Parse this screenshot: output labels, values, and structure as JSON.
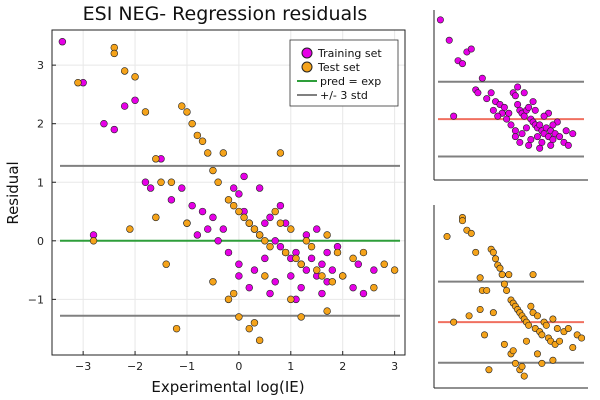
{
  "colors": {
    "training": "#e600e6",
    "test": "#f5a31a",
    "pred_line": "#2e9e3a",
    "std_line": "#808080",
    "inset_mean_line": "#f07060"
  },
  "chart_data": [
    {
      "type": "scatter",
      "title": "ESI NEG- Regression residuals",
      "xlabel": "Experimental log(IE)",
      "ylabel": "Residual",
      "xlim": [
        -3.6,
        3.2
      ],
      "ylim": [
        -1.95,
        3.6
      ],
      "xticks": [
        -3,
        -2,
        -1,
        0,
        1,
        2,
        3
      ],
      "yticks": [
        -1,
        0,
        1,
        2,
        3
      ],
      "grid": true,
      "legend_position": "top-right",
      "legend": [
        "Training set",
        "Test set",
        "pred = exp",
        "+/- 3 std"
      ],
      "reference_lines": {
        "pred_eq_exp": 0.0,
        "plus_3std": 1.28,
        "minus_3std": -1.28
      },
      "series": [
        {
          "name": "Training set",
          "x": [
            -3.4,
            -3.0,
            -2.8,
            -2.6,
            -2.4,
            -2.2,
            -2.0,
            -1.8,
            -1.7,
            -1.5,
            -1.3,
            -1.1,
            -0.9,
            -0.7,
            -0.5,
            -0.3,
            -0.1,
            0.0,
            0.1,
            0.2,
            0.3,
            0.4,
            0.5,
            0.6,
            0.7,
            0.8,
            0.9,
            1.0,
            1.1,
            1.2,
            1.3,
            1.4,
            1.5,
            1.6,
            1.7,
            1.8,
            2.0,
            2.2,
            2.4,
            2.6,
            -0.2,
            0.0,
            0.3,
            0.5,
            0.7,
            1.0,
            1.2,
            0.1,
            0.4,
            0.8,
            1.5,
            1.9,
            -0.4,
            -0.6,
            0.2,
            0.6,
            1.1,
            1.6,
            2.3,
            -1.0,
            -0.8,
            0.0,
            0.9,
            1.3,
            1.7
          ],
          "y": [
            3.4,
            2.7,
            0.1,
            2.0,
            1.9,
            2.3,
            2.4,
            1.0,
            0.9,
            1.4,
            0.7,
            0.9,
            0.6,
            0.5,
            0.4,
            0.2,
            0.9,
            0.8,
            0.5,
            0.3,
            0.2,
            0.1,
            0.3,
            0.4,
            0.0,
            -0.1,
            -0.2,
            -0.3,
            -0.2,
            -0.4,
            -0.5,
            -0.3,
            -0.6,
            -0.4,
            -0.7,
            -0.5,
            -0.6,
            -0.8,
            -0.9,
            -0.5,
            -0.2,
            -0.4,
            -0.5,
            -0.3,
            -0.7,
            -0.6,
            -0.8,
            1.1,
            0.9,
            0.6,
            0.2,
            -0.1,
            0.0,
            0.2,
            -0.8,
            -0.9,
            -1.0,
            -0.9,
            -0.4,
            0.3,
            0.1,
            -0.6,
            0.3,
            0.1,
            -0.2
          ]
        },
        {
          "name": "Test set",
          "x": [
            -3.1,
            -2.4,
            -2.4,
            -2.2,
            -2.0,
            -1.8,
            -1.6,
            -1.5,
            -1.3,
            -1.1,
            -1.0,
            -0.9,
            -0.8,
            -0.7,
            -0.6,
            -0.5,
            -0.4,
            -0.3,
            -0.2,
            -0.1,
            0.0,
            0.1,
            0.2,
            0.3,
            0.4,
            0.5,
            0.6,
            0.7,
            0.8,
            0.9,
            1.0,
            1.1,
            1.2,
            1.3,
            1.4,
            1.5,
            1.6,
            1.7,
            1.8,
            1.9,
            2.0,
            2.2,
            2.4,
            2.6,
            2.8,
            3.0,
            -0.2,
            0.0,
            0.2,
            0.4,
            -0.5,
            -1.4,
            -1.2,
            -2.8,
            -2.1,
            -1.0,
            0.3,
            0.8,
            1.2,
            1.7,
            -0.1,
            0.5,
            1.0,
            -1.6
          ],
          "y": [
            2.7,
            3.3,
            3.2,
            2.9,
            2.8,
            2.2,
            1.4,
            1.0,
            1.0,
            2.3,
            2.2,
            2.0,
            1.8,
            1.7,
            1.5,
            1.2,
            1.0,
            1.5,
            0.7,
            0.6,
            0.5,
            0.4,
            0.3,
            0.2,
            0.1,
            0.0,
            -0.1,
            0.5,
            0.3,
            -0.2,
            0.2,
            -0.3,
            -0.4,
            0.0,
            -0.1,
            -0.5,
            -0.6,
            0.1,
            -0.7,
            -0.2,
            -0.6,
            -0.3,
            -0.2,
            -0.8,
            -0.4,
            -0.5,
            -1.0,
            -1.3,
            -1.5,
            -1.7,
            -0.7,
            -0.4,
            -1.5,
            0.0,
            0.2,
            0.3,
            -1.4,
            1.5,
            -1.3,
            -1.2,
            -0.9,
            -0.6,
            -1.0,
            0.4
          ]
        }
      ]
    },
    {
      "type": "scatter",
      "title": "",
      "series_ref": "Training set",
      "reference_lines": {
        "mean": 0.0,
        "plus_3std": 1.28,
        "minus_3std": -1.28
      }
    },
    {
      "type": "scatter",
      "title": "",
      "series_ref": "Test set",
      "reference_lines": {
        "mean": 0.0,
        "plus_3std": 1.28,
        "minus_3std": -1.28
      }
    }
  ]
}
